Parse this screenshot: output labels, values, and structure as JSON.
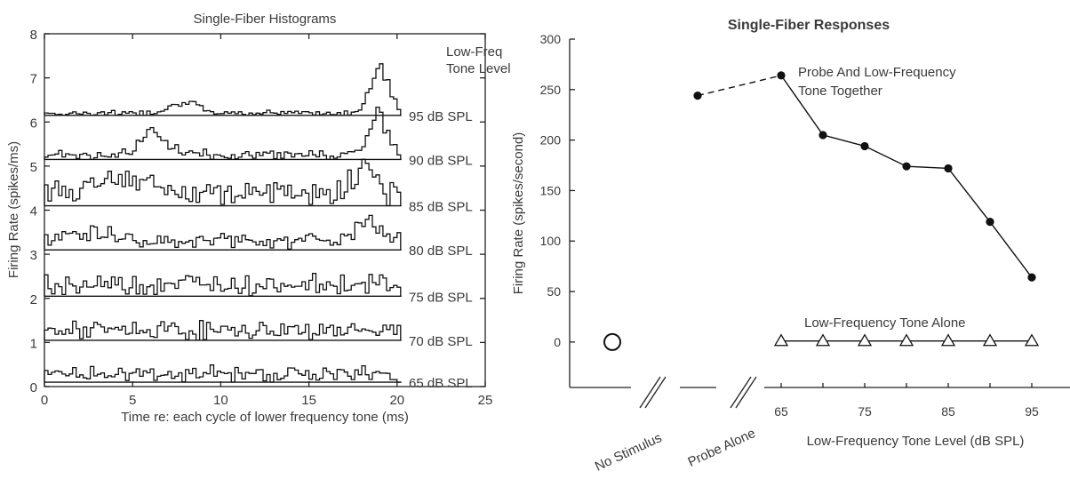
{
  "chart_data": [
    {
      "type": "line",
      "title": "Single-Fiber Histograms",
      "xlabel": "Time re: each cycle of lower frequency tone (ms)",
      "ylabel": "Firing Rate (spikes/ms)",
      "xlim": [
        0,
        25
      ],
      "ylim": [
        0,
        8
      ],
      "x_ticks": [
        "0",
        "5",
        "10",
        "15",
        "20",
        "25"
      ],
      "y_ticks": [
        "0",
        "1",
        "2",
        "3",
        "4",
        "5",
        "6",
        "7",
        "8"
      ],
      "legend_header": [
        "Low-Freq",
        "Tone Level"
      ],
      "series": [
        {
          "name": "95 dB SPL",
          "baseline": 6.15,
          "peaks": [
            {
              "center": 7.8,
              "height": 0.25,
              "width": 0.8
            },
            {
              "center": 18.9,
              "height": 1.0,
              "width": 0.55
            }
          ],
          "background": 0.05,
          "noise": 0.05
        },
        {
          "name": "90 dB SPL",
          "baseline": 5.15,
          "peaks": [
            {
              "center": 6.2,
              "height": 0.55,
              "width": 0.7
            },
            {
              "center": 18.8,
              "height": 0.95,
              "width": 0.5
            }
          ],
          "background": 0.1,
          "noise": 0.08
        },
        {
          "name": "85 dB SPL",
          "baseline": 4.1,
          "peaks": [
            {
              "center": 4.5,
              "height": 0.3,
              "width": 1.6
            },
            {
              "center": 18.0,
              "height": 0.75,
              "width": 0.5
            }
          ],
          "background": 0.3,
          "noise": 0.15
        },
        {
          "name": "80 dB SPL",
          "baseline": 3.1,
          "peaks": [
            {
              "center": 2.0,
              "height": 0.2,
              "width": 1.6
            },
            {
              "center": 18.2,
              "height": 0.55,
              "width": 0.55
            }
          ],
          "background": 0.2,
          "noise": 0.1
        },
        {
          "name": "75 dB SPL",
          "baseline": 2.05,
          "peaks": [],
          "background": 0.28,
          "noise": 0.12
        },
        {
          "name": "70 dB SPL",
          "baseline": 1.05,
          "peaks": [],
          "background": 0.22,
          "noise": 0.12
        },
        {
          "name": "65 dB SPL",
          "baseline": 0.1,
          "peaks": [],
          "background": 0.18,
          "noise": 0.12
        }
      ]
    },
    {
      "type": "line",
      "title": "Single-Fiber Responses",
      "xlabel": "Low-Frequency Tone Level (dB SPL)",
      "ylabel": "Firing Rate (spikes/second)",
      "ylim": [
        -45,
        300
      ],
      "y_ticks": [
        "0",
        "50",
        "100",
        "150",
        "200",
        "250",
        "300"
      ],
      "x_ticks": [
        "65",
        "75",
        "85",
        "95"
      ],
      "category_labels": [
        "No Stimulus",
        "Probe Alone"
      ],
      "no_stimulus": {
        "value": 0
      },
      "probe_alone": {
        "value": 244
      },
      "series": [
        {
          "name": "Probe And Low-Frequency Tone Together",
          "x": [
            65,
            70,
            75,
            80,
            85,
            90,
            95
          ],
          "y": [
            264,
            205,
            194,
            174,
            172,
            119,
            64
          ]
        },
        {
          "name": "Low-Frequency Tone Alone",
          "x": [
            65,
            70,
            75,
            80,
            85,
            90,
            95
          ],
          "y": [
            1,
            1,
            1,
            1,
            1,
            1,
            1
          ]
        }
      ],
      "annotations": [
        {
          "text": "Probe And Low-Frequency",
          "line": 1
        },
        {
          "text": "Tone Together",
          "line": 2
        },
        {
          "text": "Low-Frequency Tone Alone",
          "line": 1
        }
      ],
      "colors": {
        "line": "#111111",
        "text": "#3a3a3a"
      }
    }
  ]
}
